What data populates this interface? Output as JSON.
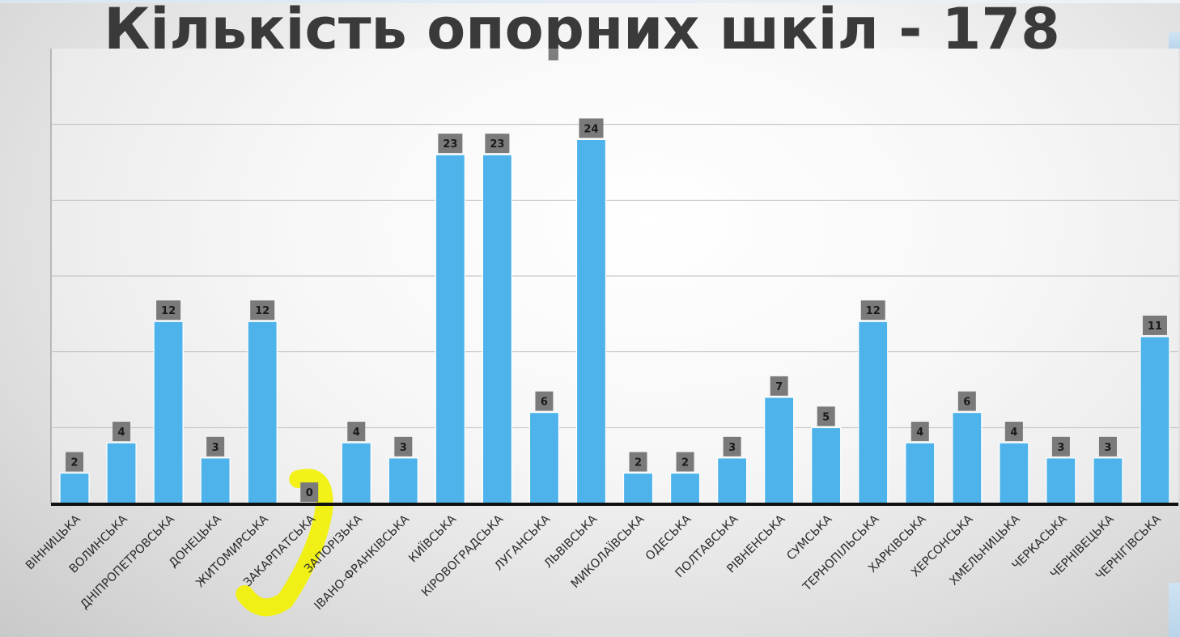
{
  "slide": {
    "title": "Кількість опорних шкіл - 178"
  },
  "colors": {
    "bar": "#4db3ea",
    "label_box": "#7a7a7a",
    "highlight": "#f2f200",
    "gridline": "#bdbdbd",
    "axis": "#111111"
  },
  "chart_data": {
    "type": "bar",
    "title": "Кількість опорних шкіл - 178",
    "xlabel": "",
    "ylabel": "",
    "ylim": [
      0,
      30
    ],
    "grid": true,
    "legend": "none",
    "highlighted_category": "ЗАКАРПАТСЬКА",
    "categories": [
      "ВІННИЦЬКА",
      "ВОЛИНСЬКА",
      "ДНІПРОПЕТРОВСЬКА",
      "ДОНЕЦЬКА",
      "ЖИТОМИРСЬКА",
      "ЗАКАРПАТСЬКА",
      "ЗАПОРІЗЬКА",
      "ІВАНО-ФРАНКІВСЬКА",
      "КИЇВСЬКА",
      "КІРОВОГРАДСЬКА",
      "ЛУГАНСЬКА",
      "ЛЬВІВСЬКА",
      "МИКОЛАЇВСЬКА",
      "ОДЕСЬКА",
      "ПОЛТАВСЬКА",
      "РІВНЕНСЬКА",
      "СУМСЬКА",
      "ТЕРНОПІЛЬСЬКА",
      "ХАРКІВСЬКА",
      "ХЕРСОНСЬКА",
      "ХМЕЛЬНИЦЬКА",
      "ЧЕРКАСЬКА",
      "ЧЕРНІВЕЦЬКА",
      "ЧЕРНІГІВСЬКА"
    ],
    "values": [
      2,
      4,
      12,
      3,
      12,
      0,
      4,
      3,
      23,
      23,
      6,
      24,
      2,
      2,
      3,
      7,
      5,
      12,
      4,
      6,
      4,
      3,
      3,
      11
    ]
  }
}
